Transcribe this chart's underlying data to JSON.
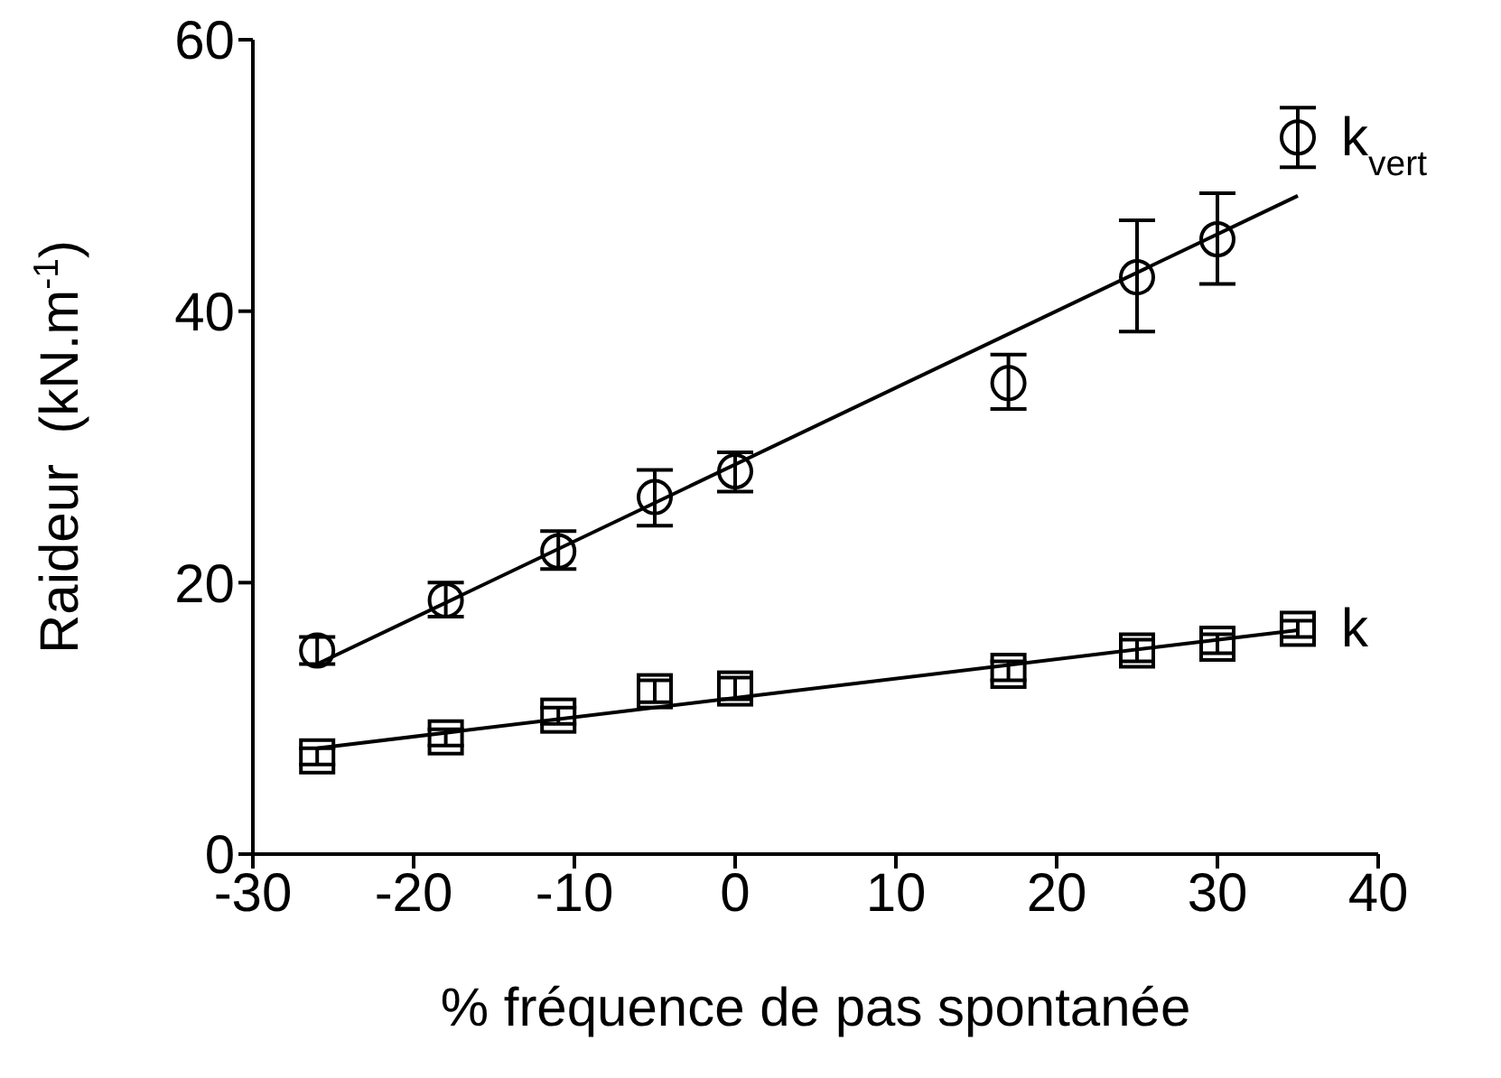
{
  "chart_data": {
    "type": "scatter",
    "xlabel": "% fréquence de pas spontanée",
    "ylabel": "Raideur  (kN.m$^{-1}$)",
    "xlim": [
      -30,
      40
    ],
    "ylim": [
      0,
      60
    ],
    "xticks": [
      -30,
      -20,
      -10,
      0,
      10,
      20,
      30,
      40
    ],
    "yticks": [
      0,
      20,
      40,
      60
    ],
    "grid": false,
    "legend": false,
    "series": [
      {
        "name": "k$_{vert}$",
        "marker": "circle",
        "color": "#000000",
        "x": [
          -26,
          -18,
          -11,
          -5,
          0,
          17,
          25,
          30,
          35
        ],
        "values": [
          15,
          18.7,
          22.3,
          26.3,
          28.2,
          34.7,
          42.5,
          45.3,
          52.8
        ],
        "errors": [
          [
            14,
            16
          ],
          [
            17.5,
            20
          ],
          [
            21,
            23.8
          ],
          [
            24.2,
            28.3
          ],
          [
            26.7,
            29.6
          ],
          [
            32.8,
            36.8
          ],
          [
            38.5,
            46.7
          ],
          [
            42,
            48.7
          ],
          [
            50.6,
            55
          ]
        ]
      },
      {
        "name": "k",
        "marker": "square",
        "color": "#000000",
        "x": [
          -26,
          -18,
          -11,
          -5,
          0,
          17,
          25,
          30,
          35
        ],
        "values": [
          7.2,
          8.6,
          10.2,
          12,
          12.2,
          13.5,
          15,
          15.5,
          16.6
        ],
        "errors": [
          [
            6.6,
            7.8
          ],
          [
            8,
            9.2
          ],
          [
            9.6,
            10.8
          ],
          [
            11.2,
            12.8
          ],
          [
            11.4,
            13
          ],
          [
            12.8,
            14.2
          ],
          [
            14.2,
            15.8
          ],
          [
            14.8,
            16.2
          ],
          [
            16,
            17.2
          ]
        ]
      },
      {
        "type": "line",
        "marker": "none",
        "color": "#000000",
        "x": [
          -26,
          35
        ],
        "values": [
          14,
          48.5
        ]
      },
      {
        "type": "line",
        "marker": "none",
        "color": "#000000",
        "x": [
          -26,
          35
        ],
        "values": [
          7.8,
          16.5
        ]
      }
    ]
  }
}
